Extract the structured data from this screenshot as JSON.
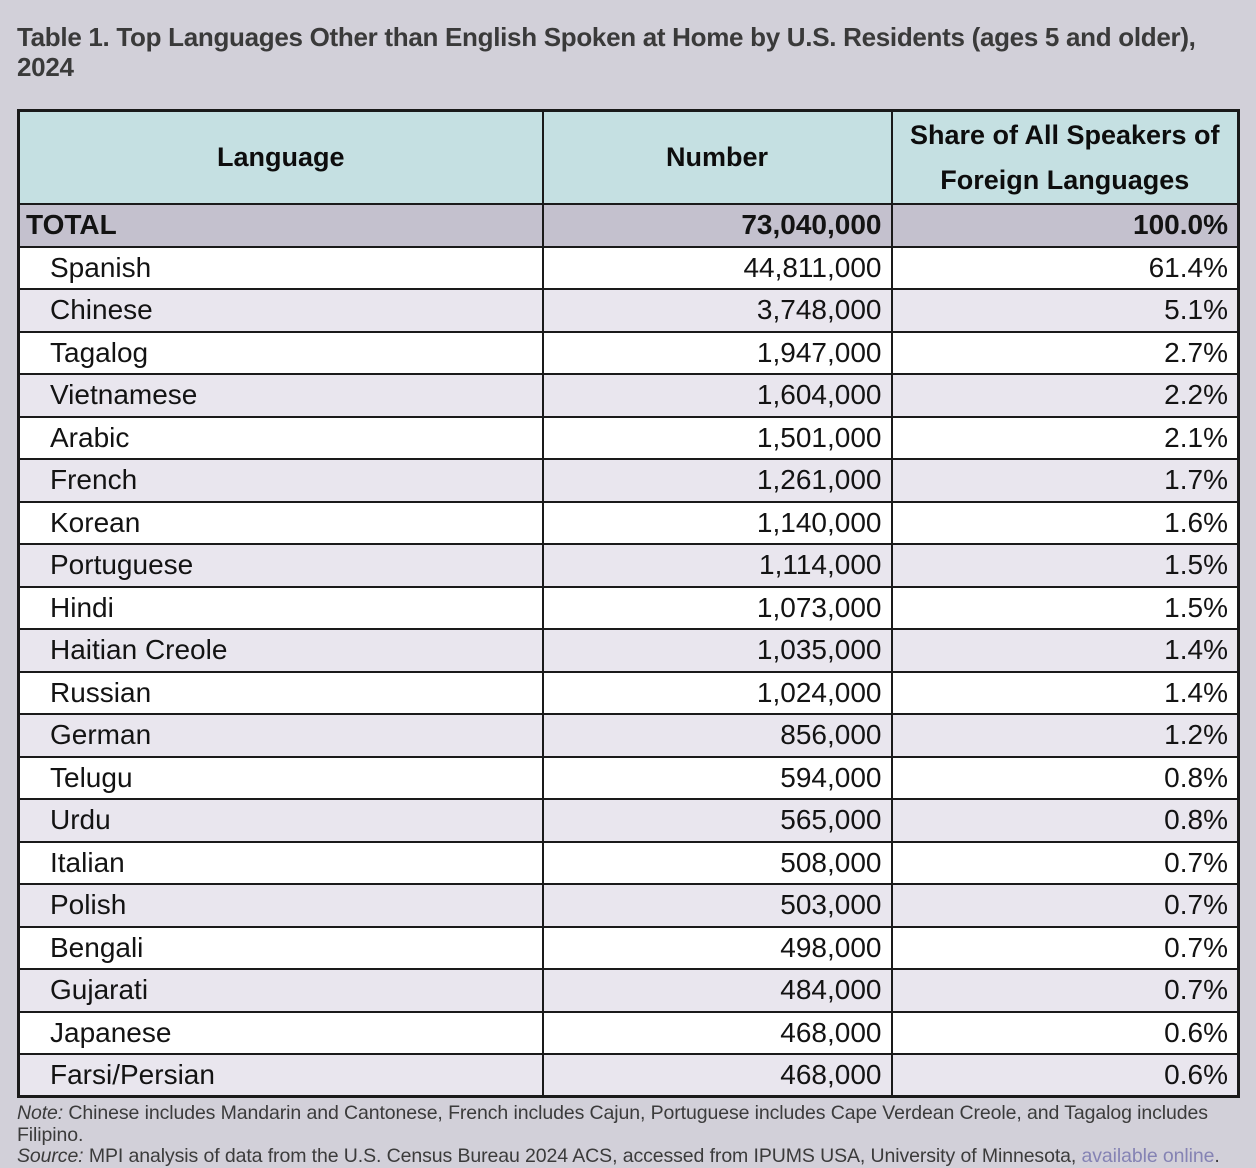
{
  "title": "Table 1. Top Languages Other than English Spoken at Home by U.S. Residents (ages 5 and older), 2024",
  "table": {
    "columns": [
      "Language",
      "Number",
      "Share of All Speakers of Foreign Languages"
    ],
    "share_header_lines": [
      "Share of All Speakers of",
      "Foreign Languages"
    ],
    "total": {
      "language": "TOTAL",
      "number": "73,040,000",
      "share": "100.0%"
    },
    "rows": [
      {
        "language": "Spanish",
        "number": "44,811,000",
        "share": "61.4%"
      },
      {
        "language": "Chinese",
        "number": "3,748,000",
        "share": "5.1%"
      },
      {
        "language": "Tagalog",
        "number": "1,947,000",
        "share": "2.7%"
      },
      {
        "language": "Vietnamese",
        "number": "1,604,000",
        "share": "2.2%"
      },
      {
        "language": "Arabic",
        "number": "1,501,000",
        "share": "2.1%"
      },
      {
        "language": "French",
        "number": "1,261,000",
        "share": "1.7%"
      },
      {
        "language": "Korean",
        "number": "1,140,000",
        "share": "1.6%"
      },
      {
        "language": "Portuguese",
        "number": "1,114,000",
        "share": "1.5%"
      },
      {
        "language": "Hindi",
        "number": "1,073,000",
        "share": "1.5%"
      },
      {
        "language": "Haitian Creole",
        "number": "1,035,000",
        "share": "1.4%"
      },
      {
        "language": "Russian",
        "number": "1,024,000",
        "share": "1.4%"
      },
      {
        "language": "German",
        "number": "856,000",
        "share": "1.2%"
      },
      {
        "language": "Telugu",
        "number": "594,000",
        "share": "0.8%"
      },
      {
        "language": "Urdu",
        "number": "565,000",
        "share": "0.8%"
      },
      {
        "language": "Italian",
        "number": "508,000",
        "share": "0.7%"
      },
      {
        "language": "Polish",
        "number": "503,000",
        "share": "0.7%"
      },
      {
        "language": "Bengali",
        "number": "498,000",
        "share": "0.7%"
      },
      {
        "language": "Gujarati",
        "number": "484,000",
        "share": "0.7%"
      },
      {
        "language": "Japanese",
        "number": "468,000",
        "share": "0.6%"
      },
      {
        "language": "Farsi/Persian",
        "number": "468,000",
        "share": "0.6%"
      }
    ]
  },
  "notes": {
    "note_label": "Note:",
    "note_text": " Chinese includes Mandarin and Cantonese, French includes Cajun, Portuguese includes Cape Verdean Creole, and Tagalog includes Filipino.",
    "source_label": "Source:",
    "source_text": " MPI analysis of data from the U.S. Census Bureau 2024 ACS, accessed from IPUMS USA, University of Minnesota, ",
    "source_link_text": "available online",
    "source_suffix": "."
  },
  "colors": {
    "page_background": "#d2d0d9",
    "header_background": "#c5e0e2",
    "total_row_background": "#c4c1ce",
    "stripe_row_background": "#e9e6ee",
    "plain_row_background": "#ffffff",
    "border": "#1a1a1a",
    "table_text": "#131313",
    "secondary_text": "#3b3b3b",
    "link": "#8583b4"
  },
  "chart_data": {
    "type": "table",
    "title": "Table 1. Top Languages Other than English Spoken at Home by U.S. Residents (ages 5 and older), 2024",
    "columns": [
      "Language",
      "Number",
      "Share of All Speakers of Foreign Languages"
    ],
    "total": {
      "language": "TOTAL",
      "number": 73040000,
      "share_pct": 100.0
    },
    "rows": [
      {
        "language": "Spanish",
        "number": 44811000,
        "share_pct": 61.4
      },
      {
        "language": "Chinese",
        "number": 3748000,
        "share_pct": 5.1
      },
      {
        "language": "Tagalog",
        "number": 1947000,
        "share_pct": 2.7
      },
      {
        "language": "Vietnamese",
        "number": 1604000,
        "share_pct": 2.2
      },
      {
        "language": "Arabic",
        "number": 1501000,
        "share_pct": 2.1
      },
      {
        "language": "French",
        "number": 1261000,
        "share_pct": 1.7
      },
      {
        "language": "Korean",
        "number": 1140000,
        "share_pct": 1.6
      },
      {
        "language": "Portuguese",
        "number": 1114000,
        "share_pct": 1.5
      },
      {
        "language": "Hindi",
        "number": 1073000,
        "share_pct": 1.5
      },
      {
        "language": "Haitian Creole",
        "number": 1035000,
        "share_pct": 1.4
      },
      {
        "language": "Russian",
        "number": 1024000,
        "share_pct": 1.4
      },
      {
        "language": "German",
        "number": 856000,
        "share_pct": 1.2
      },
      {
        "language": "Telugu",
        "number": 594000,
        "share_pct": 0.8
      },
      {
        "language": "Urdu",
        "number": 565000,
        "share_pct": 0.8
      },
      {
        "language": "Italian",
        "number": 508000,
        "share_pct": 0.7
      },
      {
        "language": "Polish",
        "number": 503000,
        "share_pct": 0.7
      },
      {
        "language": "Bengali",
        "number": 498000,
        "share_pct": 0.7
      },
      {
        "language": "Gujarati",
        "number": 484000,
        "share_pct": 0.7
      },
      {
        "language": "Japanese",
        "number": 468000,
        "share_pct": 0.6
      },
      {
        "language": "Farsi/Persian",
        "number": 468000,
        "share_pct": 0.6
      }
    ],
    "note": "Note: Chinese includes Mandarin and Cantonese, French includes Cajun, Portuguese includes Cape Verdean Creole, and Tagalog includes Filipino.",
    "source": "Source: MPI analysis of data from the U.S. Census Bureau 2024 ACS, accessed from IPUMS USA, University of Minnesota, available online."
  }
}
